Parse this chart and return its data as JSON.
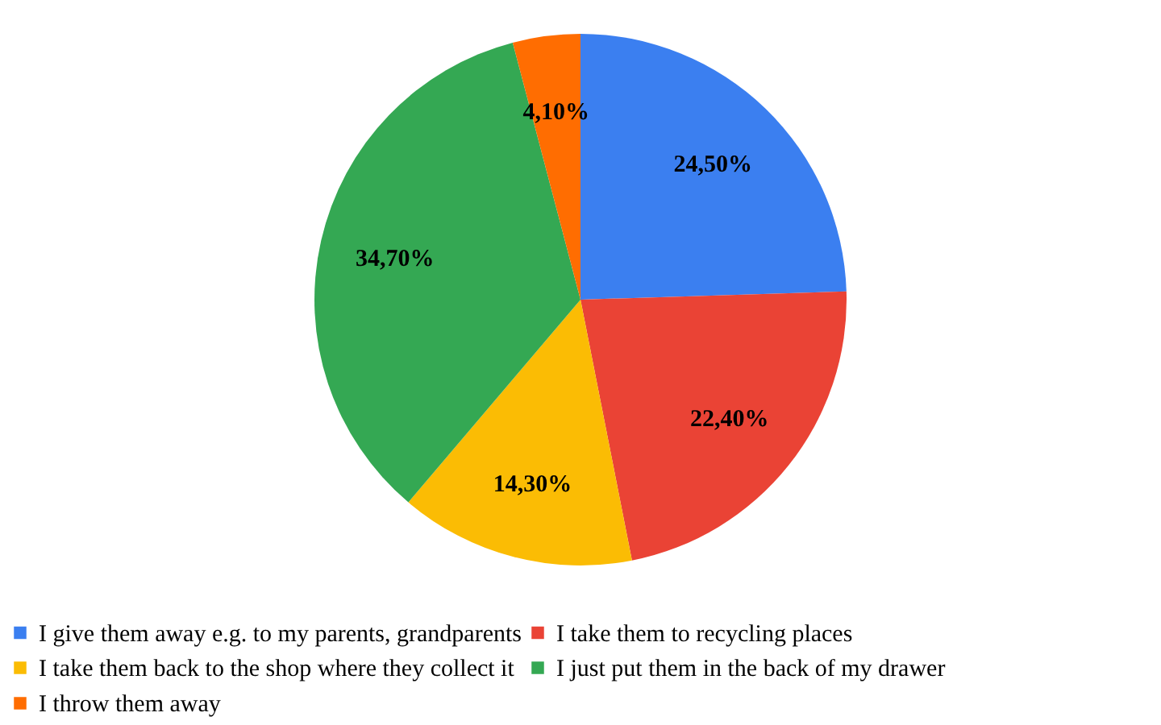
{
  "chart_data": {
    "type": "pie",
    "categories": [
      "I give them away e.g. to my parents, grandparents",
      "I take them to recycling places",
      "I take them back to the shop where they collect it",
      "I just put them in the back of my drawer",
      "I throw them away"
    ],
    "values": [
      24.5,
      22.4,
      14.3,
      34.7,
      4.1
    ],
    "value_labels": [
      "24,50%",
      "22,40%",
      "14,30%",
      "34,70%",
      "4,10%"
    ],
    "colors": [
      "#3b7ff0",
      "#ea4335",
      "#fbbc04",
      "#34a853",
      "#ff6d01"
    ],
    "legend": "bottom"
  }
}
